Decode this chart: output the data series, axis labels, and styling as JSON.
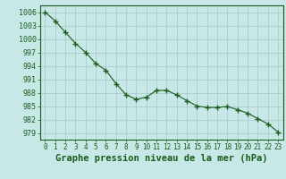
{
  "x": [
    0,
    1,
    2,
    3,
    4,
    5,
    6,
    7,
    8,
    9,
    10,
    11,
    12,
    13,
    14,
    15,
    16,
    17,
    18,
    19,
    20,
    21,
    22,
    23
  ],
  "y": [
    1006,
    1004,
    1001.5,
    999,
    997,
    994.5,
    993,
    990,
    987.5,
    986.5,
    987,
    988.5,
    988.5,
    987.5,
    986.2,
    985.0,
    984.7,
    984.7,
    984.9,
    984.2,
    983.4,
    982.2,
    981.0,
    979.2
  ],
  "bg_color": "#c8e8e8",
  "line_color": "#1a5c1a",
  "marker_color": "#1a5c1a",
  "grid_color": "#a8c8c8",
  "title": "Graphe pression niveau de la mer (hPa)",
  "ylabel_ticks": [
    979,
    982,
    985,
    988,
    991,
    994,
    997,
    1000,
    1003,
    1006
  ],
  "ylim": [
    977.5,
    1007.5
  ],
  "xlim": [
    -0.5,
    23.5
  ],
  "title_fontsize": 7.5,
  "tick_fontsize": 6.0,
  "text_color": "#1a5c1a",
  "border_color": "#1a5c1a"
}
